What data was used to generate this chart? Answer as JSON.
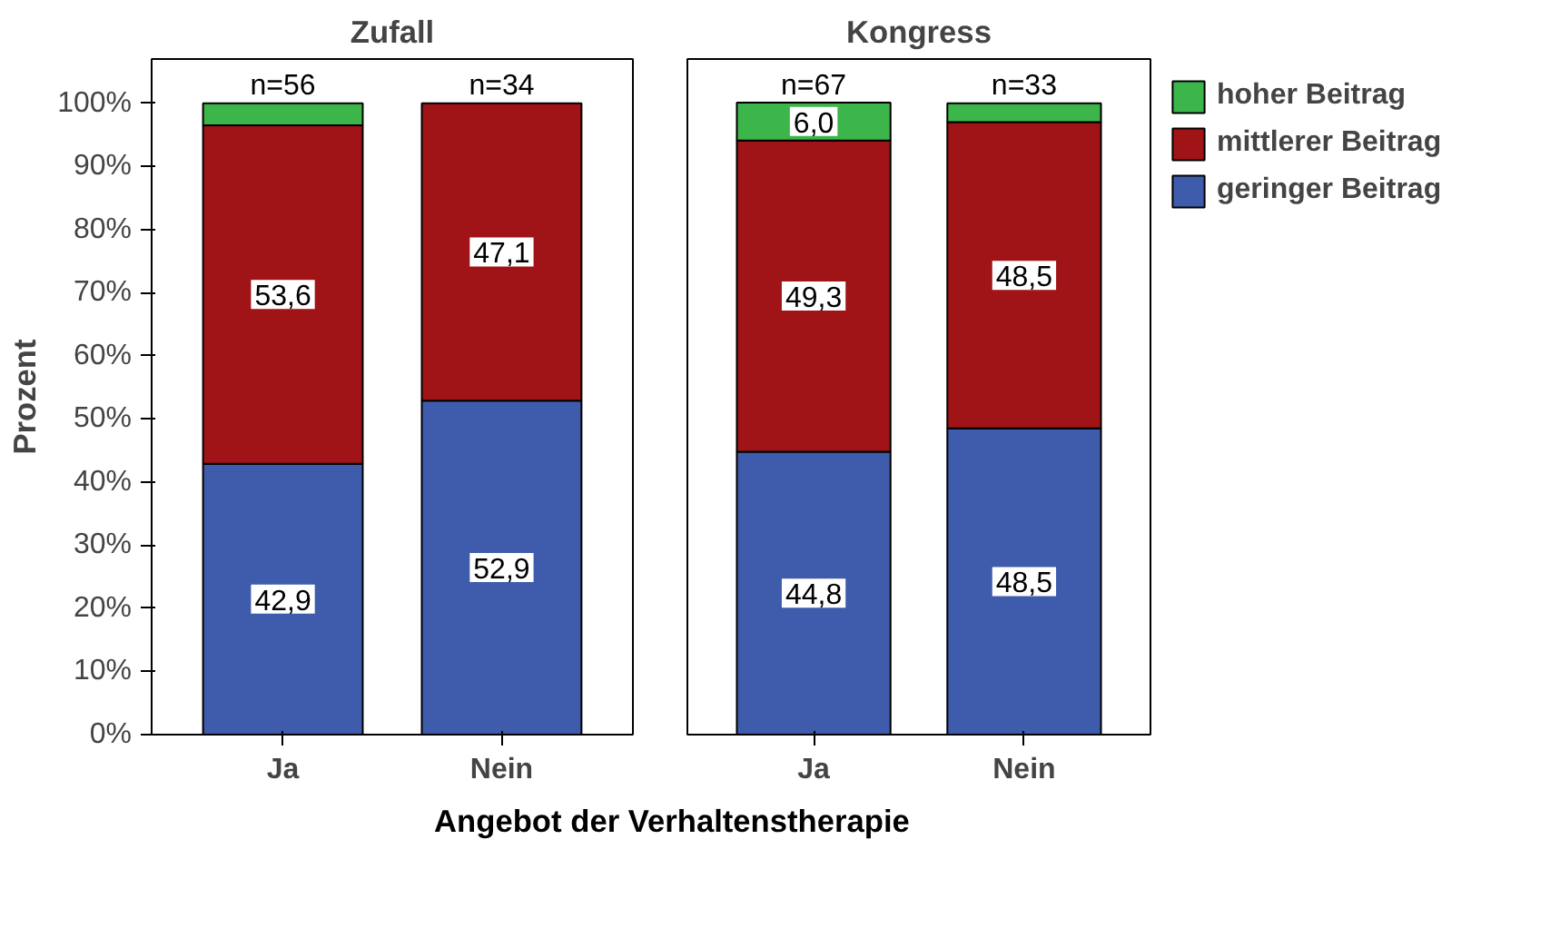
{
  "chart_data": [
    {
      "type": "bar",
      "title": "Zufall",
      "xlabel": "Angebot der Verhaltenstherapie",
      "ylabel": "Prozent",
      "categories": [
        "Ja",
        "Nein"
      ],
      "stacked": true,
      "ylim": [
        0,
        107
      ],
      "yticks": [
        {
          "value": 0,
          "label": "0%"
        },
        {
          "value": 10,
          "label": "10%"
        },
        {
          "value": 20,
          "label": "20%"
        },
        {
          "value": 30,
          "label": "30%"
        },
        {
          "value": 40,
          "label": "40%"
        },
        {
          "value": 50,
          "label": "50%"
        },
        {
          "value": 60,
          "label": "60%"
        },
        {
          "value": 70,
          "label": "70%"
        },
        {
          "value": 80,
          "label": "80%"
        },
        {
          "value": 90,
          "label": "90%"
        },
        {
          "value": 100,
          "label": "100%"
        }
      ],
      "grid": false,
      "legend": false,
      "series": [
        {
          "color": "#3f5bab",
          "values": [
            42.9,
            52.9
          ],
          "value_labels": [
            "42,9",
            "52,9"
          ]
        },
        {
          "color": "#a01418",
          "values": [
            53.6,
            47.1
          ],
          "value_labels": [
            "53,6",
            "47,1"
          ]
        },
        {
          "color": "#3cb54a",
          "values": [
            3.5,
            null
          ],
          "value_labels": [
            null,
            null
          ]
        }
      ],
      "annotations": [
        {
          "text": "n=56",
          "x": "Ja",
          "y": 100
        },
        {
          "text": "n=34",
          "x": "Nein",
          "y": 100
        }
      ]
    },
    {
      "type": "bar",
      "title": "Kongress",
      "categories": [
        "Ja",
        "Nein"
      ],
      "stacked": true,
      "ylim": [
        0,
        107
      ],
      "tick_labels": "x",
      "grid": false,
      "legend": "right",
      "series": [
        {
          "name": "geringer Beitrag",
          "color": "#3f5bab",
          "values": [
            44.8,
            48.5
          ],
          "value_labels": [
            "44,8",
            "48,5"
          ]
        },
        {
          "name": "mittlerer Beitrag",
          "color": "#a01418",
          "values": [
            49.3,
            48.5
          ],
          "value_labels": [
            "49,3",
            "48,5"
          ]
        },
        {
          "name": "hoher Beitrag",
          "color": "#3cb54a",
          "values": [
            6.0,
            3.0
          ],
          "value_labels": [
            "6,0",
            null
          ]
        }
      ],
      "annotations": [
        {
          "text": "n=67",
          "x": "Ja",
          "y": 100
        },
        {
          "text": "n=33",
          "x": "Nein",
          "y": 100
        }
      ]
    }
  ]
}
